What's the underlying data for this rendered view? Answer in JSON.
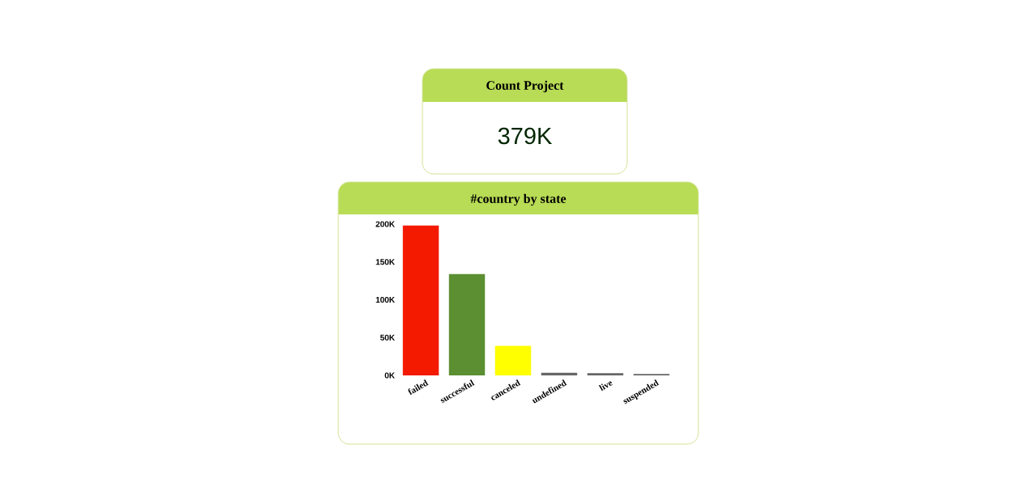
{
  "chart_data": [
    {
      "type": "other",
      "title": "Count Project",
      "annotations": [
        "379K"
      ]
    },
    {
      "type": "bar",
      "title": "#country by state",
      "categories": [
        "failed",
        "successful",
        "canceled",
        "undefined",
        "live",
        "suspended"
      ],
      "values": [
        198000,
        134000,
        39000,
        3500,
        2800,
        1800
      ],
      "colors": [
        "#f41a00",
        "#5b8f32",
        "#ffff00",
        "#666666",
        "#666666",
        "#666666"
      ],
      "ylim": [
        0,
        200000
      ],
      "yticks": [
        {
          "value": 0,
          "label": "0K"
        },
        {
          "value": 50000,
          "label": "50K"
        },
        {
          "value": 100000,
          "label": "100K"
        },
        {
          "value": 150000,
          "label": "150K"
        },
        {
          "value": 200000,
          "label": "200K"
        }
      ]
    }
  ]
}
